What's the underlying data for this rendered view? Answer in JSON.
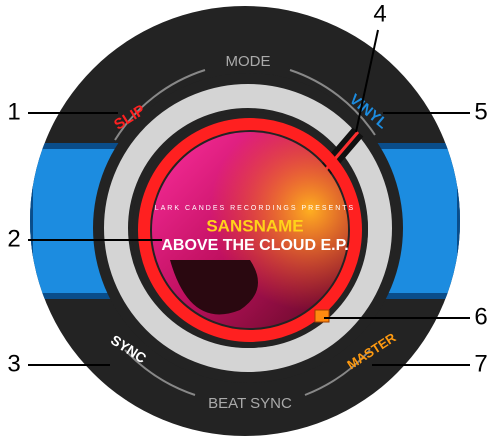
{
  "labels": {
    "mode": "MODE",
    "slip": "SLIP",
    "vinyl": "VINYL",
    "sync": "SYNC",
    "beat_sync": "BEAT SYNC",
    "master": "MASTER"
  },
  "album": {
    "publisher": "LARK CANDES RECORDINGS PRESENTS",
    "artist": "SANSNAME",
    "title": "ABOVE THE CLOUD E.P."
  },
  "callouts": [
    "1",
    "2",
    "3",
    "4",
    "5",
    "6",
    "7"
  ]
}
